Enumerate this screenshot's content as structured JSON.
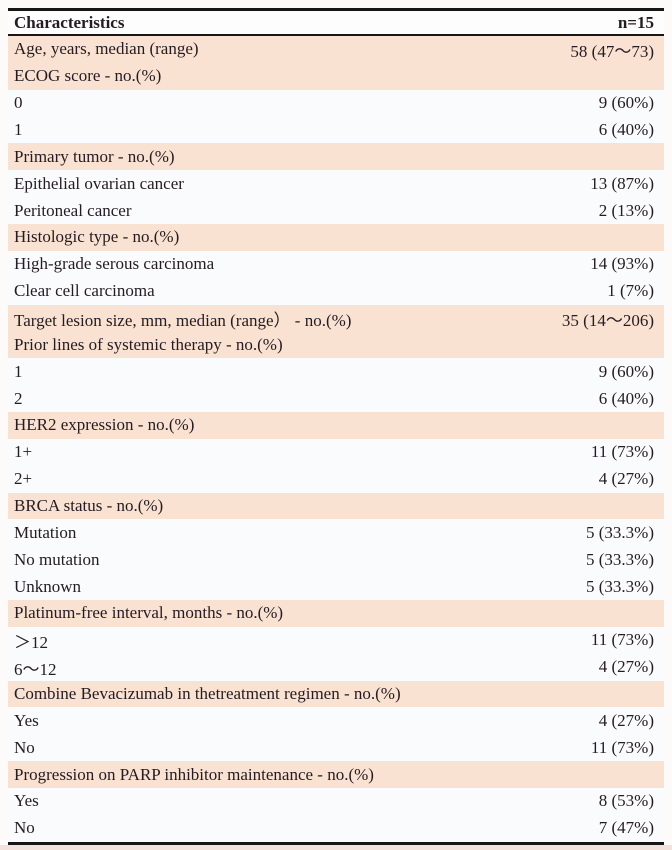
{
  "colors": {
    "page_bg": "#fcfbfa",
    "header_bg": "#fdfdfe",
    "row_plain": "#fafbfd",
    "row_highlight": "#f9e2d1",
    "rule": "#161616",
    "text": "#241c22",
    "bottom_strip": "#f3e2dc"
  },
  "table": {
    "columns": [
      "Characteristics",
      "n=15"
    ],
    "rows": [
      {
        "label": "Age, years, median (range)",
        "value": "58 (47～73)",
        "highlight": true
      },
      {
        "label": "ECOG score - no.(%)",
        "value": "",
        "highlight": true
      },
      {
        "label": "0",
        "value": "9 (60%)",
        "highlight": false
      },
      {
        "label": "1",
        "value": "6 (40%)",
        "highlight": false
      },
      {
        "label": "Primary tumor  - no.(%)",
        "value": "",
        "highlight": true
      },
      {
        "label": "Epithelial ovarian cancer",
        "value": "13 (87%)",
        "highlight": false
      },
      {
        "label": "Peritoneal cancer",
        "value": "2 (13%)",
        "highlight": false
      },
      {
        "label": "Histologic type - no.(%)",
        "value": "",
        "highlight": true
      },
      {
        "label": "High-grade serous carcinoma",
        "value": "14 (93%)",
        "highlight": false
      },
      {
        "label": "Clear cell carcinoma",
        "value": "1 (7%)",
        "highlight": false
      },
      {
        "label": "Target lesion size, mm, median (range） - no.(%)",
        "value": "35 (14～206)",
        "highlight": true
      },
      {
        "label": "Prior lines of systemic therapy - no.(%)",
        "value": "",
        "highlight": true
      },
      {
        "label": "1",
        "value": "9 (60%)",
        "highlight": false
      },
      {
        "label": "2",
        "value": "6 (40%)",
        "highlight": false
      },
      {
        "label": "HER2 expression - no.(%)",
        "value": "",
        "highlight": true
      },
      {
        "label": "1+",
        "value": "11 (73%)",
        "highlight": false
      },
      {
        "label": "2+",
        "value": "4 (27%)",
        "highlight": false
      },
      {
        "label": "BRCA status - no.(%)",
        "value": "",
        "highlight": true
      },
      {
        "label": "Mutation",
        "value": "5 (33.3%)",
        "highlight": false
      },
      {
        "label": "No mutation",
        "value": "5 (33.3%)",
        "highlight": false
      },
      {
        "label": "Unknown",
        "value": "5 (33.3%)",
        "highlight": false
      },
      {
        "label": "Platinum-free interval, months - no.(%)",
        "value": "",
        "highlight": true
      },
      {
        "label": "＞12",
        "value": "11 (73%)",
        "highlight": false
      },
      {
        "label": "6～12",
        "value": "4 (27%)",
        "highlight": false
      },
      {
        "label": "Combine Bevacizumab in thetreatment regimen - no.(%)",
        "value": "",
        "highlight": true
      },
      {
        "label": "Yes",
        "value": "4 (27%)",
        "highlight": false
      },
      {
        "label": "No",
        "value": "11 (73%)",
        "highlight": false
      },
      {
        "label": "Progression on PARP inhibitor maintenance - no.(%)",
        "value": "",
        "highlight": true
      },
      {
        "label": "Yes",
        "value": "8 (53%)",
        "highlight": false
      },
      {
        "label": "No",
        "value": "7 (47%)",
        "highlight": false
      }
    ]
  }
}
